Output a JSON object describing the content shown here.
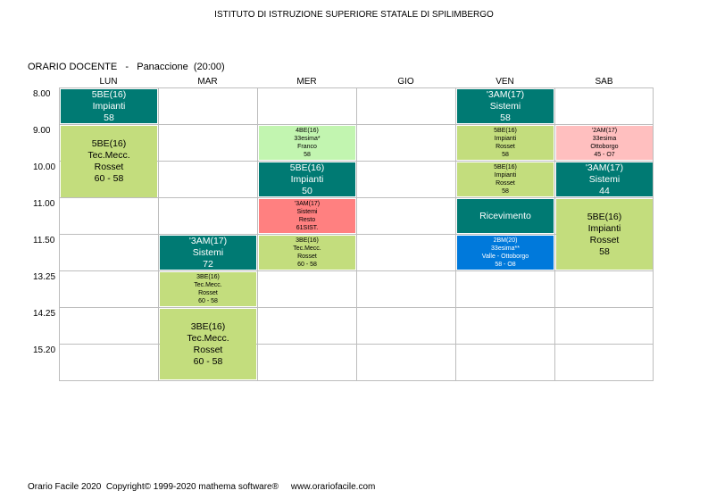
{
  "header": {
    "school": "ISTITUTO DI ISTRUZIONE SUPERIORE STATALE DI SPILIMBERGO",
    "teacher_line": "ORARIO DOCENTE   -   Panaccione  (20:00)"
  },
  "days": [
    "LUN",
    "MAR",
    "MER",
    "GIO",
    "VEN",
    "SAB"
  ],
  "times": [
    "8.00",
    "9.00",
    "10.00",
    "11.00",
    "11.50",
    "13.25",
    "14.25",
    "15.20"
  ],
  "blocks": {
    "lun_800": [
      "5BE(16)",
      "Impianti",
      "58"
    ],
    "lun_900": [
      "5BE(16)",
      "Tec.Mecc.",
      "Rosset",
      "60 - 58"
    ],
    "mar_1150": [
      "'3AM(17)",
      "Sistemi",
      "72"
    ],
    "mar_1325": [
      "3BE(16)",
      "Tec.Mecc.",
      "Rosset",
      "60 - 58"
    ],
    "mar_1425": [
      "3BE(16)",
      "Tec.Mecc.",
      "Rosset",
      "60 - 58"
    ],
    "mer_900": [
      "4BE(16)",
      "33esima*",
      "Franco",
      "58"
    ],
    "mer_1000": [
      "5BE(16)",
      "Impianti",
      "50"
    ],
    "mer_1100": [
      "'3AM(17)",
      "Sistemi",
      "Resto",
      "61SIST."
    ],
    "mer_1150": [
      "3BE(16)",
      "Tec.Mecc.",
      "Rosset",
      "60 - 58"
    ],
    "ven_800": [
      "'3AM(17)",
      "Sistemi",
      "58"
    ],
    "ven_900": [
      "5BE(16)",
      "Impianti",
      "Rosset",
      "58"
    ],
    "ven_1000": [
      "5BE(16)",
      "Impianti",
      "Rosset",
      "58"
    ],
    "ven_1100": [
      "Ricevimento"
    ],
    "ven_1150": [
      "2BM(20)",
      "33esima**",
      "Valle - Ottoborgo",
      "58 - O8"
    ],
    "sab_900": [
      "'2AM(17)",
      "33esima",
      "Ottoborgo",
      "45 - O7"
    ],
    "sab_1000": [
      "'3AM(17)",
      "Sistemi",
      "44"
    ],
    "sab_1100": [
      "5BE(16)",
      "Impianti",
      "Rosset",
      "58"
    ]
  },
  "colors": {
    "teal": "#007a73",
    "light_green": "#c3dd7d",
    "pale_green": "#c2f5b0",
    "salmon": "#ff8080",
    "pink": "#ffbfbf",
    "blue": "#0079db"
  },
  "footer": {
    "text": "Orario Facile 2020  Copyright© 1999-2020 mathema software®     www.orariofacile.com"
  }
}
